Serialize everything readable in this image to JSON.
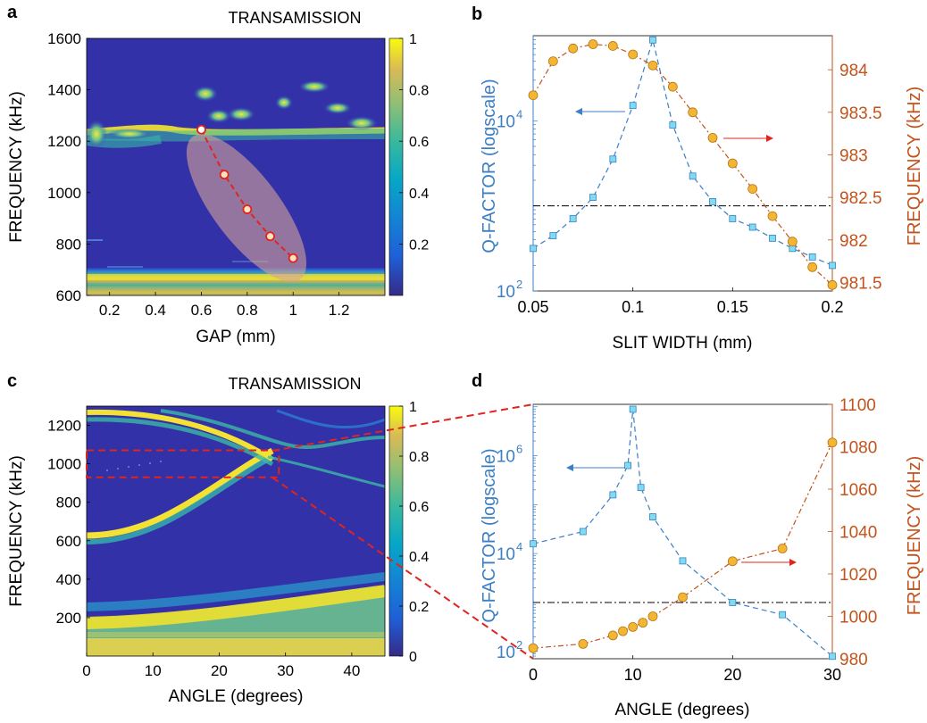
{
  "colors": {
    "blue": "#3c7fc4",
    "orange": "#c2531c",
    "cyan_marker": "#7fdcf0",
    "yellow_marker": "#f2b632",
    "red": "#e0241e",
    "black": "#000000"
  },
  "chart_data": [
    {
      "panel": "a",
      "type": "heatmap",
      "title": "TRANSAMISSION",
      "xlabel": "GAP (mm)",
      "ylabel": "FREQUENCY (kHz)",
      "xlim": [
        0.1,
        1.4
      ],
      "ylim": [
        600,
        1600
      ],
      "xticks": [
        0.2,
        0.4,
        0.6,
        0.8,
        1,
        1.2
      ],
      "yticks": [
        600,
        800,
        1000,
        1200,
        1400,
        1600
      ],
      "colorbar": {
        "ticks": [
          0.2,
          0.4,
          0.6,
          0.8,
          1
        ],
        "range": [
          0,
          1
        ],
        "colormap": "parula"
      },
      "overlay_points": {
        "x": [
          0.6,
          0.7,
          0.8,
          0.9,
          1.0
        ],
        "y": [
          1245,
          1070,
          935,
          830,
          745
        ]
      }
    },
    {
      "panel": "b",
      "type": "line",
      "xlabel": "SLIT WIDTH (mm)",
      "ylabel": "Q-FACTOR (logscale)",
      "ylabel_right": "FREQUENCY (kHz)",
      "xlim": [
        0.05,
        0.2
      ],
      "xticks": [
        0.05,
        0.1,
        0.15,
        0.2
      ],
      "ylim_left_log10": [
        2,
        5
      ],
      "yticks_left": [
        {
          "exp": 2,
          "label": "10",
          "sup": "2"
        },
        {
          "exp": 4,
          "label": "10",
          "sup": "4"
        }
      ],
      "ylim_right": [
        981.4,
        984.4
      ],
      "yticks_right": [
        981.5,
        982,
        982.5,
        983,
        983.5,
        984
      ],
      "threshold_log10": 3.0,
      "series": [
        {
          "axis": "left",
          "x": [
            0.05,
            0.06,
            0.07,
            0.08,
            0.09,
            0.1,
            0.11,
            0.12,
            0.13,
            0.14,
            0.15,
            0.16,
            0.17,
            0.18,
            0.19,
            0.2
          ],
          "y_log10": [
            2.5,
            2.65,
            2.85,
            3.1,
            3.55,
            4.18,
            4.95,
            3.95,
            3.35,
            3.05,
            2.85,
            2.75,
            2.62,
            2.5,
            2.4,
            2.3
          ]
        },
        {
          "axis": "right",
          "x": [
            0.05,
            0.06,
            0.07,
            0.08,
            0.09,
            0.1,
            0.11,
            0.12,
            0.13,
            0.14,
            0.15,
            0.16,
            0.17,
            0.18,
            0.19,
            0.2
          ],
          "y": [
            983.7,
            984.1,
            984.25,
            984.3,
            984.28,
            984.18,
            984.05,
            983.8,
            983.5,
            983.2,
            982.9,
            982.6,
            982.28,
            981.98,
            981.68,
            981.47
          ]
        }
      ]
    },
    {
      "panel": "c",
      "type": "heatmap",
      "title": "TRANSAMISSION",
      "xlabel": "ANGLE (degrees)",
      "ylabel": "FREQUENCY (kHz)",
      "xlim": [
        0,
        45
      ],
      "ylim": [
        0,
        1300
      ],
      "xticks": [
        0,
        10,
        20,
        30,
        40
      ],
      "yticks": [
        200,
        400,
        600,
        800,
        1000,
        1200
      ],
      "colorbar": {
        "ticks": [
          0,
          0.2,
          0.4,
          0.6,
          0.8,
          1
        ],
        "range": [
          0,
          1
        ],
        "colormap": "parula"
      },
      "zoom_box": {
        "x": [
          0,
          29
        ],
        "y": [
          930,
          1070
        ]
      }
    },
    {
      "panel": "d",
      "type": "line",
      "xlabel": "ANGLE (degrees)",
      "ylabel": "Q-FACTOR (logscale)",
      "ylabel_right": "FREQUENCY (kHz)",
      "xlim": [
        0,
        30
      ],
      "xticks": [
        0,
        10,
        20,
        30
      ],
      "ylim_left_log10": [
        1.85,
        7.05
      ],
      "yticks_left": [
        {
          "exp": 2,
          "label": "10",
          "sup": "2"
        },
        {
          "exp": 4,
          "label": "10",
          "sup": "4"
        },
        {
          "exp": 6,
          "label": "10",
          "sup": "6"
        }
      ],
      "ylim_right": [
        980,
        1100
      ],
      "yticks_right": [
        980,
        1000,
        1020,
        1040,
        1060,
        1080,
        1100
      ],
      "threshold_log10": 3.0,
      "series": [
        {
          "axis": "left",
          "x": [
            0,
            5,
            8,
            9.5,
            10,
            10.8,
            12,
            15,
            20,
            25,
            30
          ],
          "y_log10": [
            4.2,
            4.45,
            5.2,
            5.8,
            6.95,
            5.35,
            4.75,
            3.85,
            3.0,
            2.75,
            1.9
          ]
        },
        {
          "axis": "right",
          "x": [
            0,
            5,
            8,
            9,
            10,
            11,
            12,
            15,
            20,
            25,
            30
          ],
          "y": [
            985,
            987,
            991,
            993,
            995,
            997,
            1000,
            1009,
            1026,
            1032,
            1082
          ]
        }
      ]
    }
  ],
  "panel_labels": [
    "a",
    "b",
    "c",
    "d"
  ]
}
